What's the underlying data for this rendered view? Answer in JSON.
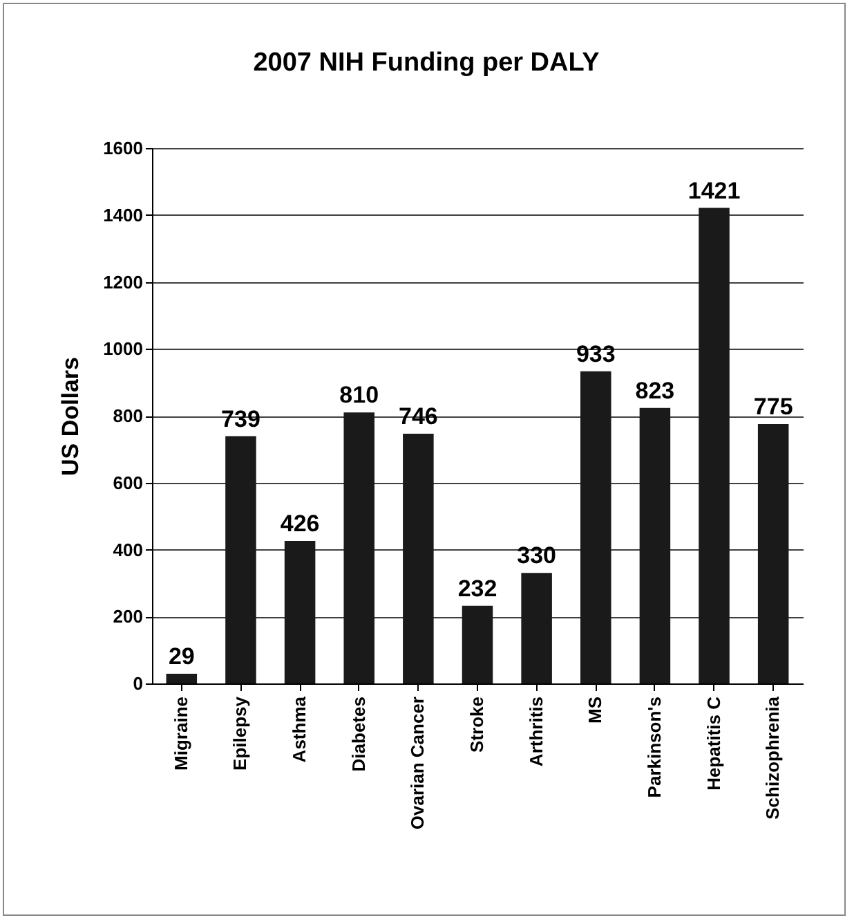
{
  "chart_data": {
    "type": "bar",
    "title": "2007 NIH Funding per DALY",
    "ylabel": "US Dollars",
    "categories": [
      "Migraine",
      "Epilepsy",
      "Asthma",
      "Diabetes",
      "Ovarian Cancer",
      "Stroke",
      "Arthritis",
      "MS",
      "Parkinson's",
      "Hepatitis C",
      "Schizophrenia"
    ],
    "values": [
      29,
      739,
      426,
      810,
      746,
      232,
      330,
      933,
      823,
      1421,
      775
    ],
    "color": "#1a1a1a",
    "ylim": [
      0,
      1600
    ],
    "yticks": [
      0,
      200,
      400,
      600,
      800,
      1000,
      1200,
      1400,
      1600
    ],
    "grid": "y",
    "data_labels": true
  }
}
